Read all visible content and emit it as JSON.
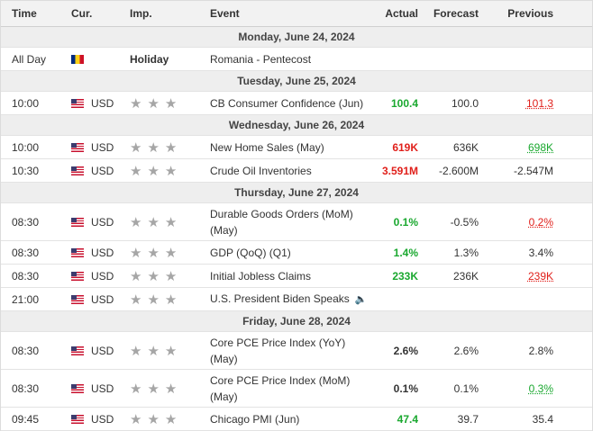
{
  "header": {
    "time": "Time",
    "cur": "Cur.",
    "imp": "Imp.",
    "event": "Event",
    "actual": "Actual",
    "forecast": "Forecast",
    "previous": "Previous"
  },
  "colors": {
    "up": "#1aa82f",
    "down": "#e0201b",
    "star": "#a6a6a6"
  },
  "days": [
    {
      "date": "Monday, June 24, 2024",
      "events": [
        {
          "time": "All Day",
          "flag": "ro",
          "cur": "",
          "imp_text": "Holiday",
          "event": "Romania - Pentecost",
          "event_line2": "",
          "actual": "",
          "actual_color": "",
          "forecast": "",
          "previous": "",
          "previous_color": ""
        }
      ]
    },
    {
      "date": "Tuesday, June 25, 2024",
      "events": [
        {
          "time": "10:00",
          "flag": "us",
          "cur": "USD",
          "imp": "★★★",
          "event": "CB Consumer Confidence (Jun)",
          "event_line2": "",
          "actual": "100.4",
          "actual_color": "green",
          "forecast": "100.0",
          "previous": "101.3",
          "previous_color": "red"
        }
      ]
    },
    {
      "date": "Wednesday, June 26, 2024",
      "events": [
        {
          "time": "10:00",
          "flag": "us",
          "cur": "USD",
          "imp": "★★★",
          "event": "New Home Sales (May)",
          "event_line2": "",
          "actual": "619K",
          "actual_color": "red",
          "forecast": "636K",
          "previous": "698K",
          "previous_color": "green"
        },
        {
          "time": "10:30",
          "flag": "us",
          "cur": "USD",
          "imp": "★★★",
          "event": "Crude Oil Inventories",
          "event_line2": "",
          "actual": "3.591M",
          "actual_color": "red",
          "forecast": "-2.600M",
          "previous": "-2.547M",
          "previous_color": ""
        }
      ]
    },
    {
      "date": "Thursday, June 27, 2024",
      "events": [
        {
          "time": "08:30",
          "flag": "us",
          "cur": "USD",
          "imp": "★★★",
          "event": "Durable Goods Orders (MoM)",
          "event_line2": "(May)",
          "actual": "0.1%",
          "actual_color": "green",
          "forecast": "-0.5%",
          "previous": "0.2%",
          "previous_color": "red"
        },
        {
          "time": "08:30",
          "flag": "us",
          "cur": "USD",
          "imp": "★★★",
          "event": "GDP (QoQ) (Q1)",
          "event_line2": "",
          "actual": "1.4%",
          "actual_color": "green",
          "forecast": "1.3%",
          "previous": "3.4%",
          "previous_color": ""
        },
        {
          "time": "08:30",
          "flag": "us",
          "cur": "USD",
          "imp": "★★★",
          "event": "Initial Jobless Claims",
          "event_line2": "",
          "actual": "233K",
          "actual_color": "green",
          "forecast": "236K",
          "previous": "239K",
          "previous_color": "red"
        },
        {
          "time": "21:00",
          "flag": "us",
          "cur": "USD",
          "imp": "★★★",
          "event": "U.S. President Biden Speaks",
          "event_line2": "",
          "speech": true,
          "actual": "",
          "actual_color": "",
          "forecast": "",
          "previous": "",
          "previous_color": ""
        }
      ]
    },
    {
      "date": "Friday, June 28, 2024",
      "events": [
        {
          "time": "08:30",
          "flag": "us",
          "cur": "USD",
          "imp": "★★★",
          "event": "Core PCE Price Index (YoY)",
          "event_line2": "(May)",
          "actual": "2.6%",
          "actual_color": "",
          "forecast": "2.6%",
          "previous": "2.8%",
          "previous_color": ""
        },
        {
          "time": "08:30",
          "flag": "us",
          "cur": "USD",
          "imp": "★★★",
          "event": "Core PCE Price Index (MoM)",
          "event_line2": "(May)",
          "actual": "0.1%",
          "actual_color": "",
          "forecast": "0.1%",
          "previous": "0.3%",
          "previous_color": "green"
        },
        {
          "time": "09:45",
          "flag": "us",
          "cur": "USD",
          "imp": "★★★",
          "event": "Chicago PMI (Jun)",
          "event_line2": "",
          "actual": "47.4",
          "actual_color": "green",
          "forecast": "39.7",
          "previous": "35.4",
          "previous_color": ""
        }
      ]
    }
  ]
}
